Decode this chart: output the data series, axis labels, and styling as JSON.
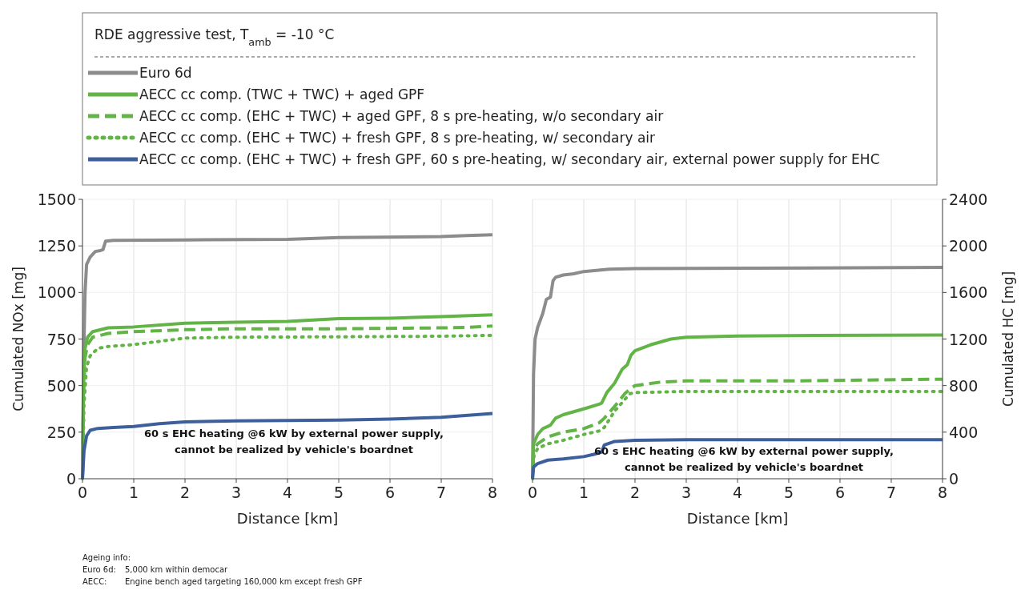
{
  "chart_data": [
    {
      "type": "line",
      "title": "RDE aggressive test, T$_{amb}$ = -10 °C",
      "xlabel": "Distance [km]",
      "ylabel": "Cumulated NOx [mg]",
      "xlim": [
        0,
        8
      ],
      "xticks": [
        0,
        1,
        2,
        3,
        4,
        5,
        6,
        7,
        8
      ],
      "ylim": [
        0,
        1500
      ],
      "yticks": [
        0,
        250,
        500,
        750,
        1000,
        1250,
        1500
      ],
      "grid": true,
      "legend": "top",
      "annotations": [
        "60 s EHC heating @6 kW by external power supply,\ncannot be realized by vehicle's boardnet",
        "Ageing info:\nEuro 6d:\t5,000 km within democar\nAECC:\tEngine bench aged targeting 160,000 km except fresh GPF"
      ],
      "series": [
        {
          "name": "Euro 6d",
          "color": "#8c8c8c",
          "line_style": "solid",
          "x": [
            0,
            0.02,
            0.05,
            0.08,
            0.15,
            0.25,
            0.35,
            0.4,
            0.45,
            0.6,
            2,
            4,
            5,
            7,
            7.5,
            8
          ],
          "values": [
            0,
            600,
            1000,
            1150,
            1190,
            1220,
            1225,
            1230,
            1275,
            1280,
            1282,
            1285,
            1295,
            1300,
            1305,
            1310
          ]
        },
        {
          "name": "AECC cc comp. (TWC + TWC) + aged GPF",
          "color": "#62b446",
          "line_style": "solid",
          "x": [
            0,
            0.02,
            0.05,
            0.1,
            0.2,
            0.5,
            1,
            2,
            3,
            4,
            5,
            6,
            7,
            8
          ],
          "values": [
            0,
            500,
            700,
            760,
            790,
            810,
            815,
            835,
            840,
            845,
            860,
            862,
            870,
            880
          ]
        },
        {
          "name": "AECC cc comp. (EHC + TWC) + aged GPF, 8 s pre-heating, w/o secondary air",
          "color": "#62b446",
          "line_style": "dashed",
          "x": [
            0,
            0.02,
            0.05,
            0.1,
            0.2,
            0.5,
            1,
            2,
            3,
            5,
            7,
            7.5,
            8
          ],
          "values": [
            0,
            450,
            650,
            720,
            760,
            780,
            790,
            800,
            805,
            805,
            810,
            812,
            820
          ]
        },
        {
          "name": "AECC cc comp. (EHC + TWC) + fresh GPF, 8 s pre-heating, w/ secondary air",
          "color": "#62b446",
          "line_style": "dotted",
          "x": [
            0,
            0.03,
            0.08,
            0.15,
            0.3,
            0.5,
            1,
            2,
            3,
            5,
            7,
            8
          ],
          "values": [
            0,
            400,
            600,
            660,
            700,
            710,
            720,
            755,
            760,
            762,
            765,
            770
          ]
        },
        {
          "name": "AECC cc comp. (EHC + TWC) + fresh GPF, 60 s pre-heating, w/ secondary air, external power supply for EHC",
          "color": "#3d5f9b",
          "line_style": "solid",
          "x": [
            0,
            0.03,
            0.08,
            0.15,
            0.3,
            0.6,
            1,
            1.5,
            2,
            3,
            5,
            6,
            7,
            8
          ],
          "values": [
            0,
            150,
            230,
            260,
            270,
            275,
            280,
            295,
            305,
            310,
            315,
            320,
            330,
            350
          ]
        }
      ]
    },
    {
      "type": "line",
      "xlabel": "Distance [km]",
      "ylabel": "Cumulated HC [mg]",
      "xlim": [
        0,
        8
      ],
      "xticks": [
        0,
        1,
        2,
        3,
        4,
        5,
        6,
        7,
        8
      ],
      "ylim": [
        0,
        2400
      ],
      "yticks": [
        0,
        400,
        800,
        1200,
        1600,
        2000,
        2400
      ],
      "grid": true,
      "annotations": [
        "60 s EHC heating @6 kW by external power supply,\ncannot be realized by vehicle's boardnet"
      ],
      "series": [
        {
          "color": "#8c8c8c",
          "line_style": "solid",
          "x": [
            0,
            0.02,
            0.05,
            0.1,
            0.2,
            0.27,
            0.35,
            0.4,
            0.45,
            0.6,
            0.8,
            1,
            1.5,
            2,
            8
          ],
          "values": [
            0,
            900,
            1200,
            1300,
            1420,
            1540,
            1560,
            1700,
            1730,
            1750,
            1760,
            1780,
            1800,
            1805,
            1815
          ]
        },
        {
          "color": "#62b446",
          "line_style": "solid",
          "x": [
            0,
            0.02,
            0.1,
            0.2,
            0.35,
            0.45,
            0.6,
            1,
            1.3,
            1.35,
            1.45,
            1.6,
            1.75,
            1.85,
            1.92,
            2,
            2.3,
            2.7,
            3,
            4,
            5,
            8
          ],
          "values": [
            0,
            300,
            380,
            430,
            460,
            520,
            550,
            600,
            640,
            650,
            740,
            820,
            940,
            980,
            1060,
            1100,
            1150,
            1200,
            1215,
            1225,
            1230,
            1235
          ]
        },
        {
          "color": "#62b446",
          "line_style": "dashed",
          "x": [
            0,
            0.02,
            0.1,
            0.3,
            0.6,
            1,
            1.3,
            1.4,
            1.6,
            1.8,
            1.9,
            2,
            2.5,
            3,
            5,
            8
          ],
          "values": [
            0,
            250,
            300,
            360,
            400,
            430,
            480,
            520,
            620,
            730,
            770,
            800,
            830,
            840,
            840,
            855
          ]
        },
        {
          "color": "#62b446",
          "line_style": "dotted",
          "x": [
            0,
            0.03,
            0.1,
            0.3,
            0.6,
            1,
            1.3,
            1.4,
            1.6,
            1.9,
            2,
            3,
            5,
            8
          ],
          "values": [
            0,
            200,
            260,
            300,
            330,
            380,
            410,
            440,
            580,
            730,
            740,
            750,
            750,
            750
          ]
        },
        {
          "color": "#3d5f9b",
          "line_style": "solid",
          "x": [
            0,
            0.02,
            0.1,
            0.3,
            0.6,
            1,
            1.2,
            1.35,
            1.4,
            1.6,
            2,
            3,
            8
          ],
          "values": [
            0,
            100,
            130,
            160,
            170,
            190,
            210,
            230,
            290,
            320,
            330,
            335,
            335
          ]
        }
      ]
    }
  ]
}
